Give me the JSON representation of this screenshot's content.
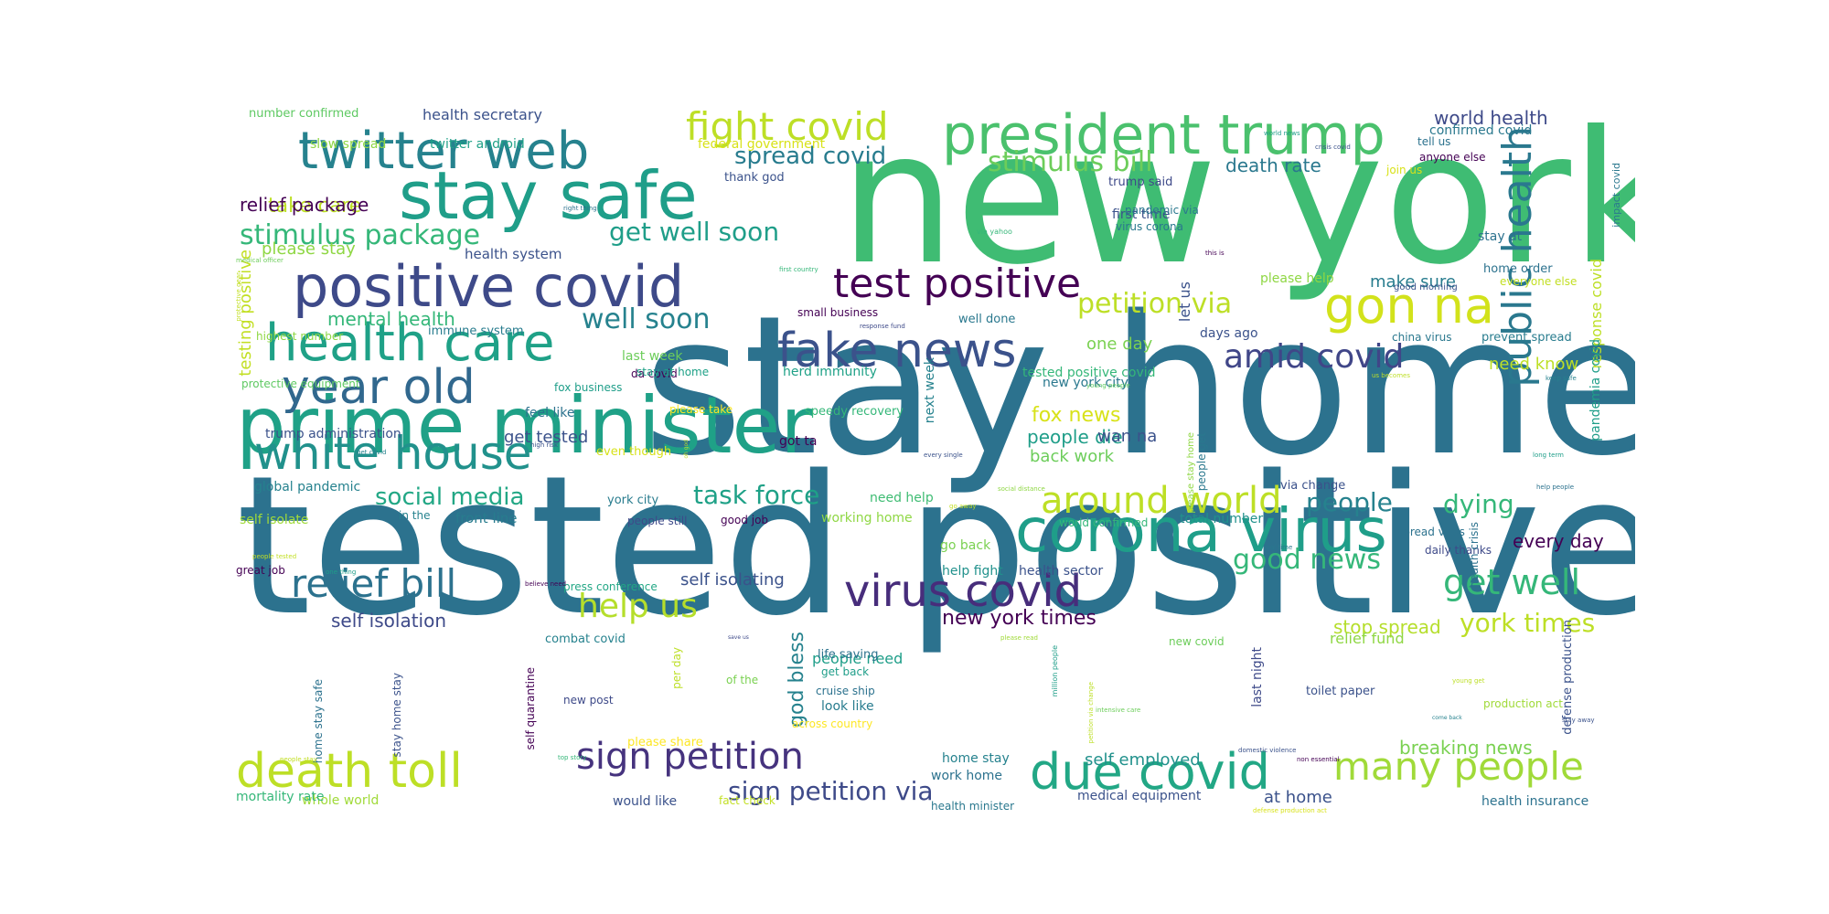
{
  "word_cloud": {
    "palette": [
      "#440154",
      "#3b528b",
      "#21918c",
      "#5ec962",
      "#fde725"
    ],
    "words": [
      {
        "text": "new york",
        "c": "#3fbc73"
      },
      {
        "text": "stay home",
        "c": "#2c728e"
      },
      {
        "text": "tested positive",
        "c": "#2c728e"
      },
      {
        "text": "prime minister",
        "c": "#1fa187"
      },
      {
        "text": "stay safe",
        "c": "#1f9e89"
      },
      {
        "text": "president trump",
        "c": "#4ac16d"
      },
      {
        "text": "positive covid",
        "c": "#3e4a89"
      },
      {
        "text": "corona virus",
        "c": "#1f9e89"
      },
      {
        "text": "health care",
        "c": "#1fa187"
      },
      {
        "text": "twitter web",
        "c": "#26828e"
      },
      {
        "text": "death toll",
        "c": "#bddf26"
      },
      {
        "text": "test positive",
        "c": "#440154"
      },
      {
        "text": "fake news",
        "c": "#3b528b"
      },
      {
        "text": "due covid",
        "c": "#22a785"
      },
      {
        "text": "white house",
        "c": "#21918c"
      },
      {
        "text": "year old",
        "c": "#31688e"
      },
      {
        "text": "virus covid",
        "c": "#472d7b"
      },
      {
        "text": "gon na",
        "c": "#d2e21b"
      },
      {
        "text": "sign petition",
        "c": "#46337e"
      },
      {
        "text": "public health",
        "c": "#2a788e"
      },
      {
        "text": "relief bill",
        "c": "#2c728e"
      },
      {
        "text": "fight covid",
        "c": "#bddf26"
      },
      {
        "text": "many people",
        "c": "#a0da39"
      },
      {
        "text": "around world",
        "c": "#bddf26"
      },
      {
        "text": "amid covid",
        "c": "#404688"
      },
      {
        "text": "get well",
        "c": "#35b779"
      },
      {
        "text": "stimulus package",
        "c": "#35b779"
      },
      {
        "text": "stimulus bill",
        "c": "#6ccd5a"
      },
      {
        "text": "petition via",
        "c": "#bddf26"
      },
      {
        "text": "spread covid",
        "c": "#287c8e"
      },
      {
        "text": "well soon",
        "c": "#26828e"
      },
      {
        "text": "get well soon",
        "c": "#1f9e89"
      },
      {
        "text": "help us",
        "c": "#b5de2b"
      },
      {
        "text": "social media",
        "c": "#22a785"
      },
      {
        "text": "task force",
        "c": "#1fa187"
      },
      {
        "text": "people",
        "c": "#26828e"
      },
      {
        "text": "dying",
        "c": "#35b779"
      },
      {
        "text": "sign petition via",
        "c": "#3e4a89"
      },
      {
        "text": "york times",
        "c": "#bddf26"
      },
      {
        "text": "good news",
        "c": "#35b779"
      },
      {
        "text": "new york times",
        "c": "#440154"
      },
      {
        "text": "fox news",
        "c": "#d8e219"
      },
      {
        "text": "world health",
        "c": "#3e4a89"
      },
      {
        "text": "self isolation",
        "c": "#3e4a89"
      },
      {
        "text": "death rate",
        "c": "#2a788e"
      },
      {
        "text": "mental health",
        "c": "#35b779"
      },
      {
        "text": "take care",
        "c": "#bddf26"
      },
      {
        "text": "relief package",
        "c": "#440154"
      },
      {
        "text": "please stay",
        "c": "#8fd744"
      },
      {
        "text": "people die",
        "c": "#1f9e89"
      },
      {
        "text": "every day",
        "c": "#440154"
      },
      {
        "text": "self isolating",
        "c": "#3b528b"
      },
      {
        "text": "make sure",
        "c": "#287c8e"
      },
      {
        "text": "one day",
        "c": "#7ad151"
      },
      {
        "text": "wan na",
        "c": "#3b528b"
      },
      {
        "text": "back work",
        "c": "#6ccd5a"
      },
      {
        "text": "god bless",
        "c": "#26828e"
      },
      {
        "text": "get tested",
        "c": "#3b528b"
      },
      {
        "text": "breaking news",
        "c": "#7ad151"
      },
      {
        "text": "self employed",
        "c": "#21918c"
      },
      {
        "text": "need know",
        "c": "#bddf26"
      },
      {
        "text": "stop spread",
        "c": "#b5de2b"
      },
      {
        "text": "relief fund",
        "c": "#8fd744"
      },
      {
        "text": "health system",
        "c": "#3b528b"
      },
      {
        "text": "testing positive",
        "c": "#c2df23"
      },
      {
        "text": "response covid",
        "c": "#bddf26"
      },
      {
        "text": "pandemia covid",
        "c": "#1f9e89"
      },
      {
        "text": "people need",
        "c": "#1f9e89"
      },
      {
        "text": "health secretary",
        "c": "#3b528b"
      },
      {
        "text": "twitter android",
        "c": "#1fa187"
      },
      {
        "text": "slow spread",
        "c": "#8fd744"
      },
      {
        "text": "number confirmed",
        "c": "#5ec962"
      },
      {
        "text": "confirmed covid",
        "c": "#2a788e"
      },
      {
        "text": "federal government",
        "c": "#d8e219"
      },
      {
        "text": "trump said",
        "c": "#3e4a89"
      },
      {
        "text": "let us",
        "c": "#3b528b"
      },
      {
        "text": "first time",
        "c": "#3b528b"
      },
      {
        "text": "please help",
        "c": "#8fd744"
      },
      {
        "text": "home order",
        "c": "#2c728e"
      },
      {
        "text": "everyone else",
        "c": "#c2df23"
      },
      {
        "text": "stay at",
        "c": "#2c728e"
      },
      {
        "text": "tell us",
        "c": "#2c728e"
      },
      {
        "text": "anyone else",
        "c": "#440154"
      },
      {
        "text": "join us",
        "c": "#d8e219"
      },
      {
        "text": "thank god",
        "c": "#3b528b"
      },
      {
        "text": "pandemic via",
        "c": "#2a788e"
      },
      {
        "text": "virus corona",
        "c": "#2a788e"
      },
      {
        "text": "small business",
        "c": "#440154"
      },
      {
        "text": "next week",
        "c": "#26828e"
      },
      {
        "text": "well done",
        "c": "#2a788e"
      },
      {
        "text": "days ago",
        "c": "#3b528b"
      },
      {
        "text": "china virus",
        "c": "#2a788e"
      },
      {
        "text": "prevent spread",
        "c": "#287c8e"
      },
      {
        "text": "last week",
        "c": "#6ccd5a"
      },
      {
        "text": "da covid",
        "c": "#440154"
      },
      {
        "text": "stay at home",
        "c": "#1fa187"
      },
      {
        "text": "herd immunity",
        "c": "#1fa187"
      },
      {
        "text": "tested positive covid",
        "c": "#35b779"
      },
      {
        "text": "new york city",
        "c": "#2a788e"
      },
      {
        "text": "immune system",
        "c": "#287c8e"
      },
      {
        "text": "highest number",
        "c": "#8fd744"
      },
      {
        "text": "protective equipment",
        "c": "#5ec962"
      },
      {
        "text": "fox business",
        "c": "#1f9e89"
      },
      {
        "text": "feel like",
        "c": "#2c728e"
      },
      {
        "text": "please take",
        "c": "#fde725"
      },
      {
        "text": "speedy recovery",
        "c": "#35b779"
      },
      {
        "text": "trump administration",
        "c": "#3b528b"
      },
      {
        "text": "even though",
        "c": "#d8e219"
      },
      {
        "text": "got ta",
        "c": "#440154"
      },
      {
        "text": "global pandemic",
        "c": "#26828e"
      },
      {
        "text": "self isolate",
        "c": "#a0da39"
      },
      {
        "text": "in the",
        "c": "#26828e"
      },
      {
        "text": "front line",
        "c": "#287c8e"
      },
      {
        "text": "people still",
        "c": "#3e4a89"
      },
      {
        "text": "good job",
        "c": "#440154"
      },
      {
        "text": "york city",
        "c": "#287c8e"
      },
      {
        "text": "need help",
        "c": "#3fbc73"
      },
      {
        "text": "working home",
        "c": "#8fd744"
      },
      {
        "text": "world confirmed",
        "c": "#35b779"
      },
      {
        "text": "total number",
        "c": "#21918c"
      },
      {
        "text": "people get",
        "c": "#2a788e"
      },
      {
        "text": "via change",
        "c": "#3b528b"
      },
      {
        "text": "spread virus",
        "c": "#2c728e"
      },
      {
        "text": "daily thanks",
        "c": "#3e4a89"
      },
      {
        "text": "go back",
        "c": "#7ad151"
      },
      {
        "text": "help fight",
        "c": "#21918c"
      },
      {
        "text": "health sector",
        "c": "#3b528b"
      },
      {
        "text": "great job",
        "c": "#440154"
      },
      {
        "text": "press conference",
        "c": "#22a785"
      },
      {
        "text": "combat covid",
        "c": "#26828e"
      },
      {
        "text": "life saving",
        "c": "#2c728e"
      },
      {
        "text": "get back",
        "c": "#1f9e89"
      },
      {
        "text": "cruise ship",
        "c": "#2c728e"
      },
      {
        "text": "look like",
        "c": "#287c8e"
      },
      {
        "text": "new post",
        "c": "#3e4a89"
      },
      {
        "text": "please share",
        "c": "#fde725"
      },
      {
        "text": "across country",
        "c": "#fde725"
      },
      {
        "text": "home stay",
        "c": "#26828e"
      },
      {
        "text": "work home",
        "c": "#2c728e"
      },
      {
        "text": "last night",
        "c": "#3e4a89"
      },
      {
        "text": "toilet paper",
        "c": "#3b528b"
      },
      {
        "text": "production act",
        "c": "#a0da39"
      },
      {
        "text": "defense production",
        "c": "#3b528b"
      },
      {
        "text": "medical equipment",
        "c": "#3b528b"
      },
      {
        "text": "at home",
        "c": "#3b528b"
      },
      {
        "text": "health insurance",
        "c": "#2c728e"
      },
      {
        "text": "health minister",
        "c": "#2a788e"
      },
      {
        "text": "would like",
        "c": "#3b528b"
      },
      {
        "text": "fact check",
        "c": "#c2df23"
      },
      {
        "text": "whole world",
        "c": "#a0da39"
      },
      {
        "text": "mortality rate",
        "c": "#35b779"
      },
      {
        "text": "home stay safe",
        "c": "#2c728e"
      },
      {
        "text": "stay home stay",
        "c": "#3b528b"
      },
      {
        "text": "self quarantine",
        "c": "#440154"
      },
      {
        "text": "per day",
        "c": "#bddf26"
      },
      {
        "text": "of the",
        "c": "#7ad151"
      },
      {
        "text": "new covid",
        "c": "#6ccd5a"
      },
      {
        "text": "impact covid",
        "c": "#2a788e"
      },
      {
        "text": "health crisis",
        "c": "#2c728e"
      },
      {
        "text": "please stay home",
        "c": "#8fd744"
      },
      {
        "text": "medical staff",
        "c": "#3b528b"
      },
      {
        "text": "world news",
        "c": "#1f9e89"
      },
      {
        "text": "crisis covid",
        "c": "#3b528b"
      },
      {
        "text": "right thing",
        "c": "#2c728e"
      },
      {
        "text": "via yahoo",
        "c": "#35b779"
      },
      {
        "text": "medical officer",
        "c": "#6ccd5a"
      },
      {
        "text": "first country",
        "c": "#35b779"
      },
      {
        "text": "this is",
        "c": "#440154"
      },
      {
        "text": "protective gear",
        "c": "#c2df23"
      },
      {
        "text": "good morning",
        "c": "#3b528b"
      },
      {
        "text": "us becomes",
        "c": "#bddf26"
      },
      {
        "text": "young people",
        "c": "#5ec962"
      },
      {
        "text": "keep safe",
        "c": "#26828e"
      },
      {
        "text": "response fund",
        "c": "#3e4a89"
      },
      {
        "text": "high risk",
        "c": "#3b528b"
      },
      {
        "text": "get covid",
        "c": "#26828e"
      },
      {
        "text": "oh god",
        "c": "#bddf26"
      },
      {
        "text": "every single",
        "c": "#3b528b"
      },
      {
        "text": "go away",
        "c": "#c2df23"
      },
      {
        "text": "social distance",
        "c": "#8fd744"
      },
      {
        "text": "long term",
        "c": "#1f9e89"
      },
      {
        "text": "help people",
        "c": "#2c728e"
      },
      {
        "text": "people tested",
        "c": "#c2df23"
      },
      {
        "text": "one thing",
        "c": "#1f9e89"
      },
      {
        "text": "believe need",
        "c": "#440154"
      },
      {
        "text": "real time",
        "c": "#2a788e"
      },
      {
        "text": "save us",
        "c": "#3e4a89"
      },
      {
        "text": "please read",
        "c": "#a0da39"
      },
      {
        "text": "million people",
        "c": "#1f9e89"
      },
      {
        "text": "petition via change",
        "c": "#bddf26"
      },
      {
        "text": "young get",
        "c": "#bddf26"
      },
      {
        "text": "intensive care",
        "c": "#6ccd5a"
      },
      {
        "text": "come back",
        "c": "#26828e"
      },
      {
        "text": "stay away",
        "c": "#3b528b"
      },
      {
        "text": "people stay",
        "c": "#c2df23"
      },
      {
        "text": "top story",
        "c": "#35b779"
      },
      {
        "text": "non essential",
        "c": "#440154"
      },
      {
        "text": "domestic violence",
        "c": "#3b528b"
      },
      {
        "text": "defense production act",
        "c": "#d8e219"
      },
      {
        "text": "fighting covid",
        "c": "#3b528b"
      }
    ]
  }
}
